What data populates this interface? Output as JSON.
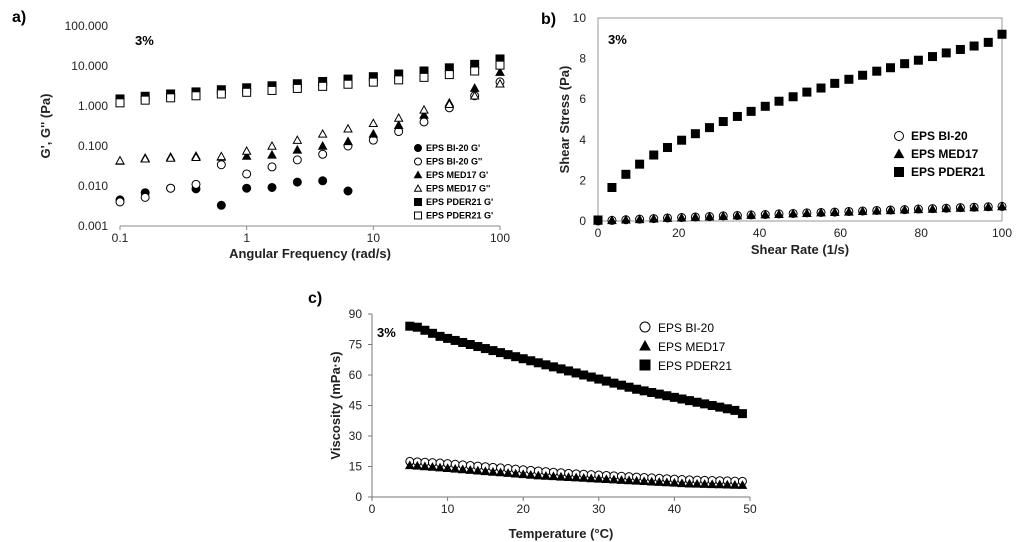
{
  "chart_data": [
    {
      "panel": "a)",
      "type": "scatter",
      "annotation": "3%",
      "xlabel": "Angular Frequency (rad/s)",
      "ylabel": "G', G'' (Pa)",
      "xscale": "log",
      "yscale": "log",
      "xlim": [
        0.1,
        100
      ],
      "ylim": [
        0.001,
        100
      ],
      "xticks": [
        "0.1",
        "1",
        "10",
        "100"
      ],
      "yticks": [
        "0.001",
        "0.010",
        "0.100",
        "1.000",
        "10.000",
        "100.000"
      ],
      "legend_position": "bottom-right",
      "series": [
        {
          "name": "EPS BI-20  G'",
          "marker": "filled-circle",
          "x": [
            0.1,
            0.158,
            0.251,
            0.398,
            0.631,
            1.0,
            1.585,
            2.512,
            3.981,
            6.31
          ],
          "y": [
            0.0045,
            0.0068,
            0.0088,
            0.0085,
            0.0033,
            0.0088,
            0.0092,
            0.0125,
            0.0135,
            0.0075
          ]
        },
        {
          "name": "EPS BI-20  G''",
          "marker": "open-circle",
          "x": [
            0.1,
            0.158,
            0.251,
            0.398,
            0.631,
            1.0,
            1.585,
            2.512,
            3.981,
            6.31,
            10,
            15.85,
            25.12,
            39.81,
            63.1,
            100
          ],
          "y": [
            0.004,
            0.0052,
            0.0088,
            0.011,
            0.034,
            0.02,
            0.03,
            0.045,
            0.062,
            0.1,
            0.14,
            0.23,
            0.4,
            0.9,
            1.8,
            4.0
          ]
        },
        {
          "name": "EPS MED17 G'",
          "marker": "filled-triangle",
          "x": [
            0.1,
            0.158,
            0.251,
            0.398,
            0.631,
            1.0,
            1.585,
            2.512,
            3.981,
            6.31,
            10,
            15.85,
            25.12,
            39.81,
            63.1,
            100
          ],
          "y": [
            0.042,
            0.05,
            0.053,
            0.056,
            0.053,
            0.056,
            0.06,
            0.08,
            0.1,
            0.13,
            0.2,
            0.33,
            0.6,
            1.2,
            2.8,
            7.0
          ]
        },
        {
          "name": "EPS MED17 G''",
          "marker": "open-triangle",
          "x": [
            0.1,
            0.158,
            0.251,
            0.398,
            0.631,
            1.0,
            1.585,
            2.512,
            3.981,
            6.31,
            10,
            15.85,
            25.12,
            39.81,
            63.1,
            100
          ],
          "y": [
            0.043,
            0.048,
            0.05,
            0.052,
            0.055,
            0.075,
            0.1,
            0.14,
            0.2,
            0.27,
            0.37,
            0.5,
            0.8,
            1.1,
            1.8,
            3.6
          ]
        },
        {
          "name": "EPS PDER21 G'",
          "marker": "filled-square",
          "x": [
            0.1,
            0.158,
            0.251,
            0.398,
            0.631,
            1.0,
            1.585,
            2.512,
            3.981,
            6.31,
            10,
            15.85,
            25.12,
            39.81,
            63.1,
            100
          ],
          "y": [
            1.5,
            1.75,
            2.0,
            2.25,
            2.55,
            2.85,
            3.2,
            3.6,
            4.1,
            4.7,
            5.4,
            6.3,
            7.5,
            9.0,
            11.0,
            15.0
          ]
        },
        {
          "name": "EPS PDER21 G'",
          "marker": "open-square",
          "x": [
            0.1,
            0.158,
            0.251,
            0.398,
            0.631,
            1.0,
            1.585,
            2.512,
            3.981,
            6.31,
            10,
            15.85,
            25.12,
            39.81,
            63.1,
            100
          ],
          "y": [
            1.2,
            1.4,
            1.6,
            1.8,
            2.0,
            2.2,
            2.45,
            2.75,
            3.1,
            3.5,
            3.95,
            4.5,
            5.2,
            6.1,
            7.5,
            10.5
          ]
        }
      ]
    },
    {
      "panel": "b)",
      "type": "scatter",
      "annotation": "3%",
      "xlabel": "Shear Rate (1/s)",
      "ylabel": "Shear Stress (Pa)",
      "xlim": [
        0,
        100
      ],
      "ylim": [
        0,
        10
      ],
      "xticks": [
        "0",
        "20",
        "40",
        "60",
        "80",
        "100"
      ],
      "yticks": [
        "0",
        "2",
        "4",
        "6",
        "8",
        "10"
      ],
      "legend_position": "right",
      "series": [
        {
          "name": "EPS BI-20",
          "marker": "open-circle",
          "x": [
            0,
            3.45,
            6.9,
            10.3,
            13.8,
            17.2,
            20.7,
            24.1,
            27.6,
            31.0,
            34.5,
            37.9,
            41.4,
            44.8,
            48.3,
            51.7,
            55.2,
            58.6,
            62.1,
            65.5,
            69.0,
            72.4,
            75.9,
            79.3,
            82.8,
            86.2,
            89.7,
            93.1,
            96.6,
            100
          ],
          "y": [
            0,
            0.03,
            0.06,
            0.09,
            0.12,
            0.15,
            0.17,
            0.2,
            0.22,
            0.25,
            0.27,
            0.3,
            0.32,
            0.35,
            0.37,
            0.4,
            0.42,
            0.44,
            0.47,
            0.49,
            0.52,
            0.54,
            0.56,
            0.59,
            0.61,
            0.63,
            0.66,
            0.68,
            0.7,
            0.72
          ]
        },
        {
          "name": "EPS MED17",
          "marker": "filled-triangle",
          "x": [
            0,
            3.45,
            6.9,
            10.3,
            13.8,
            17.2,
            20.7,
            24.1,
            27.6,
            31.0,
            34.5,
            37.9,
            41.4,
            44.8,
            48.3,
            51.7,
            55.2,
            58.6,
            62.1,
            65.5,
            69.0,
            72.4,
            75.9,
            79.3,
            82.8,
            86.2,
            89.7,
            93.1,
            96.6,
            100
          ],
          "y": [
            0,
            0.03,
            0.06,
            0.08,
            0.11,
            0.14,
            0.16,
            0.19,
            0.21,
            0.24,
            0.26,
            0.29,
            0.31,
            0.33,
            0.36,
            0.38,
            0.41,
            0.43,
            0.45,
            0.48,
            0.5,
            0.52,
            0.55,
            0.57,
            0.59,
            0.62,
            0.64,
            0.66,
            0.69,
            0.71
          ]
        },
        {
          "name": "EPS PDER21",
          "marker": "filled-square",
          "x": [
            0,
            3.45,
            6.9,
            10.3,
            13.8,
            17.2,
            20.7,
            24.1,
            27.6,
            31.0,
            34.5,
            37.9,
            41.4,
            44.8,
            48.3,
            51.7,
            55.2,
            58.6,
            62.1,
            65.5,
            69.0,
            72.4,
            75.9,
            79.3,
            82.8,
            86.2,
            89.7,
            93.1,
            96.6,
            100
          ],
          "y": [
            0.05,
            1.65,
            2.3,
            2.8,
            3.25,
            3.62,
            3.98,
            4.3,
            4.6,
            4.9,
            5.15,
            5.4,
            5.65,
            5.9,
            6.12,
            6.35,
            6.55,
            6.78,
            6.98,
            7.18,
            7.38,
            7.55,
            7.75,
            7.92,
            8.1,
            8.28,
            8.45,
            8.62,
            8.8,
            9.2
          ]
        }
      ]
    },
    {
      "panel": "c)",
      "type": "scatter",
      "annotation": "3%",
      "xlabel": "Temperature (°C)",
      "ylabel": "Viscosity  (mPa·s)",
      "xlim": [
        0,
        50
      ],
      "ylim": [
        0,
        90
      ],
      "xticks": [
        "0",
        "10",
        "20",
        "30",
        "40",
        "50"
      ],
      "yticks": [
        "0",
        "15",
        "30",
        "45",
        "60",
        "75",
        "90"
      ],
      "legend_position": "top-right",
      "series": [
        {
          "name": "EPS BI-20",
          "marker": "open-circle",
          "x": [
            5,
            6,
            7,
            8,
            9,
            10,
            11,
            12,
            13,
            14,
            15,
            16,
            17,
            18,
            19,
            20,
            21,
            22,
            23,
            24,
            25,
            26,
            27,
            28,
            29,
            30,
            31,
            32,
            33,
            34,
            35,
            36,
            37,
            38,
            39,
            40,
            41,
            42,
            43,
            44,
            45,
            46,
            47,
            48,
            49
          ],
          "y": [
            17.5,
            17.3,
            17.1,
            16.9,
            16.7,
            16.4,
            16.1,
            15.8,
            15.5,
            15.2,
            14.9,
            14.6,
            14.3,
            14.0,
            13.7,
            13.4,
            13.1,
            12.8,
            12.5,
            12.2,
            11.9,
            11.6,
            11.4,
            11.2,
            11.0,
            10.8,
            10.6,
            10.4,
            10.2,
            10.0,
            9.8,
            9.6,
            9.4,
            9.2,
            9.0,
            8.8,
            8.6,
            8.4,
            8.3,
            8.2,
            8.1,
            8.0,
            7.9,
            7.8,
            7.7
          ]
        },
        {
          "name": "EPS MED17",
          "marker": "filled-triangle",
          "x": [
            5,
            6,
            7,
            8,
            9,
            10,
            11,
            12,
            13,
            14,
            15,
            16,
            17,
            18,
            19,
            20,
            21,
            22,
            23,
            24,
            25,
            26,
            27,
            28,
            29,
            30,
            31,
            32,
            33,
            34,
            35,
            36,
            37,
            38,
            39,
            40,
            41,
            42,
            43,
            44,
            45,
            46,
            47,
            48,
            49
          ],
          "y": [
            15.5,
            15.3,
            15.0,
            14.7,
            14.4,
            14.1,
            13.8,
            13.5,
            13.2,
            12.9,
            12.6,
            12.3,
            12.0,
            11.7,
            11.4,
            11.1,
            10.8,
            10.5,
            10.3,
            10.1,
            9.9,
            9.7,
            9.5,
            9.3,
            9.1,
            8.9,
            8.7,
            8.5,
            8.3,
            8.1,
            7.9,
            7.7,
            7.5,
            7.3,
            7.1,
            6.9,
            6.7,
            6.5,
            6.4,
            6.3,
            6.2,
            6.1,
            6.0,
            5.9,
            5.8
          ]
        },
        {
          "name": "EPS PDER21",
          "marker": "filled-square",
          "x": [
            5,
            6,
            7,
            8,
            9,
            10,
            11,
            12,
            13,
            14,
            15,
            16,
            17,
            18,
            19,
            20,
            21,
            22,
            23,
            24,
            25,
            26,
            27,
            28,
            29,
            30,
            31,
            32,
            33,
            34,
            35,
            36,
            37,
            38,
            39,
            40,
            41,
            42,
            43,
            44,
            45,
            46,
            47,
            48,
            49
          ],
          "y": [
            84,
            83.5,
            82,
            80.5,
            79,
            78,
            77,
            76,
            75,
            74,
            73,
            72,
            71,
            70,
            69,
            68,
            67,
            66,
            65,
            64,
            63,
            62,
            61,
            60,
            59,
            58,
            57,
            56,
            55,
            54,
            53,
            52.2,
            51.4,
            50.6,
            49.8,
            49,
            48.2,
            47.4,
            46.6,
            45.8,
            45,
            44.2,
            43.4,
            42.6,
            41
          ]
        }
      ]
    }
  ]
}
